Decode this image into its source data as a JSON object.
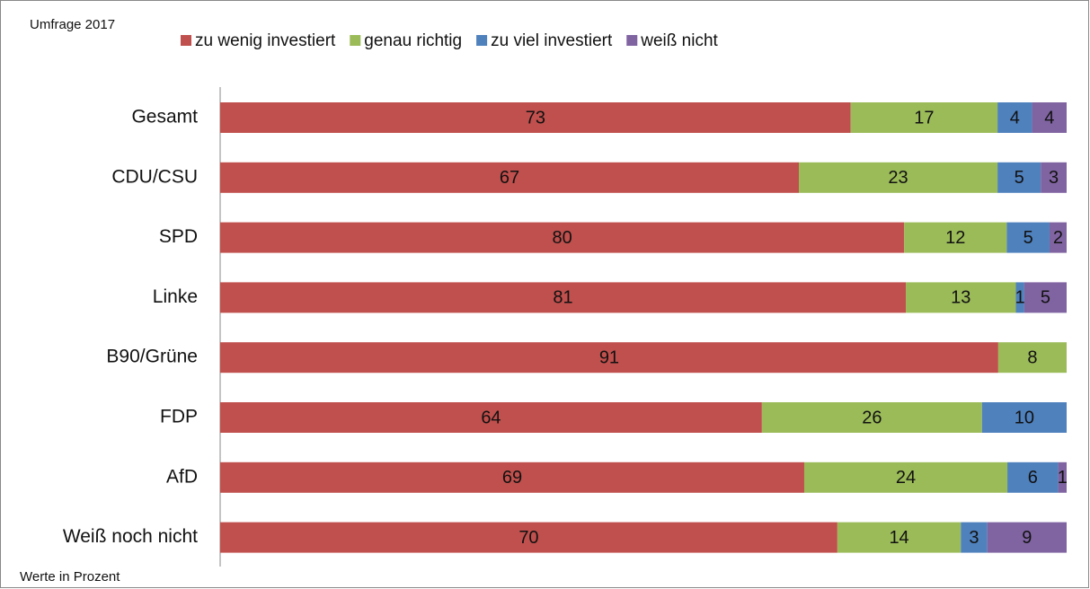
{
  "chart_data": {
    "type": "bar",
    "orientation": "horizontal",
    "stacked": "percent",
    "title": "Umfrage 2017",
    "note": "Werte in Prozent",
    "categories": [
      "Gesamt",
      "CDU/CSU",
      "SPD",
      "Linke",
      "B90/Grüne",
      "FDP",
      "AfD",
      "Weiß noch nicht"
    ],
    "series": [
      {
        "name": "zu wenig investiert",
        "color": "#c0504d",
        "values": [
          73,
          67,
          80,
          81,
          91,
          64,
          69,
          70
        ]
      },
      {
        "name": "genau richtig",
        "color": "#9bbb59",
        "values": [
          17,
          23,
          12,
          13,
          8,
          26,
          24,
          14
        ]
      },
      {
        "name": "zu viel investiert",
        "color": "#4f81bd",
        "values": [
          4,
          5,
          5,
          1,
          null,
          10,
          6,
          3
        ]
      },
      {
        "name": "weiß nicht",
        "color": "#8064a2",
        "values": [
          4,
          3,
          2,
          5,
          null,
          null,
          1,
          9
        ]
      }
    ],
    "legend": "top"
  }
}
